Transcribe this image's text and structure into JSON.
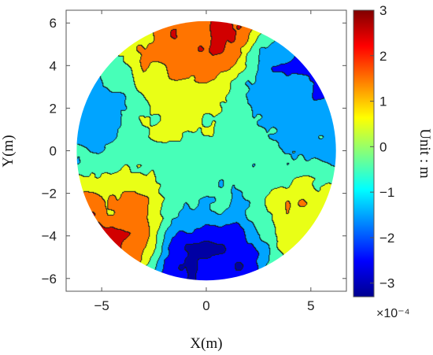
{
  "chart_data": {
    "type": "heatmap",
    "subtype": "filled-contour map on a circular domain",
    "title": "",
    "xlabel": "X(m)",
    "ylabel": "Y(m)",
    "xlim": [
      -6.7,
      6.7
    ],
    "ylim": [
      -6.6,
      6.6
    ],
    "x_ticks": [
      -5,
      0,
      5
    ],
    "y_ticks": [
      6,
      4,
      2,
      0,
      -2,
      -4,
      -6
    ],
    "x_tick_labels": [
      "−5",
      "0",
      "5"
    ],
    "y_tick_labels": [
      "6",
      "4",
      "2",
      "0",
      "−2",
      "−4",
      "−6"
    ],
    "domain_radius": 6.2,
    "colorbar": {
      "label": "Unit : m",
      "range": [
        -3.3,
        3.0
      ],
      "ticks": [
        3,
        2,
        1,
        0,
        -1,
        -2,
        -3
      ],
      "tick_labels": [
        "3",
        "2",
        "1",
        "0",
        "−1",
        "−2",
        "−3"
      ],
      "exponent_label": "×10⁻⁴",
      "colormap": [
        "#00008f",
        "#0000ff",
        "#0080ff",
        "#00ffff",
        "#80ff80",
        "#ffff00",
        "#ff8000",
        "#ff0000",
        "#800000"
      ]
    },
    "contour_levels": [
      -3,
      -2,
      -1,
      0,
      1,
      2
    ],
    "features": [
      {
        "kind": "low",
        "x": 0.0,
        "y": -5.0,
        "value": -3.2
      },
      {
        "kind": "low",
        "x": 4.9,
        "y": 3.9,
        "value": -2.5
      },
      {
        "kind": "low",
        "x": 5.5,
        "y": 0.8,
        "value": -1.6
      },
      {
        "kind": "low",
        "x": -5.3,
        "y": 1.2,
        "value": -1.7
      },
      {
        "kind": "low",
        "x": 3.3,
        "y": 3.0,
        "value": -1.3
      },
      {
        "kind": "low",
        "x": 0.2,
        "y": -1.5,
        "value": -0.7
      },
      {
        "kind": "high",
        "x": 0.0,
        "y": 5.3,
        "value": 2.6
      },
      {
        "kind": "high",
        "x": -5.0,
        "y": -3.9,
        "value": 2.7
      },
      {
        "kind": "high",
        "x": -1.0,
        "y": 3.9,
        "value": 0.9
      },
      {
        "kind": "high",
        "x": -4.5,
        "y": -2.3,
        "value": 0.6
      },
      {
        "kind": "high",
        "x": 5.4,
        "y": -2.9,
        "value": 0.8
      },
      {
        "kind": "high",
        "x": -2.0,
        "y": 1.3,
        "value": 0.1
      }
    ]
  }
}
